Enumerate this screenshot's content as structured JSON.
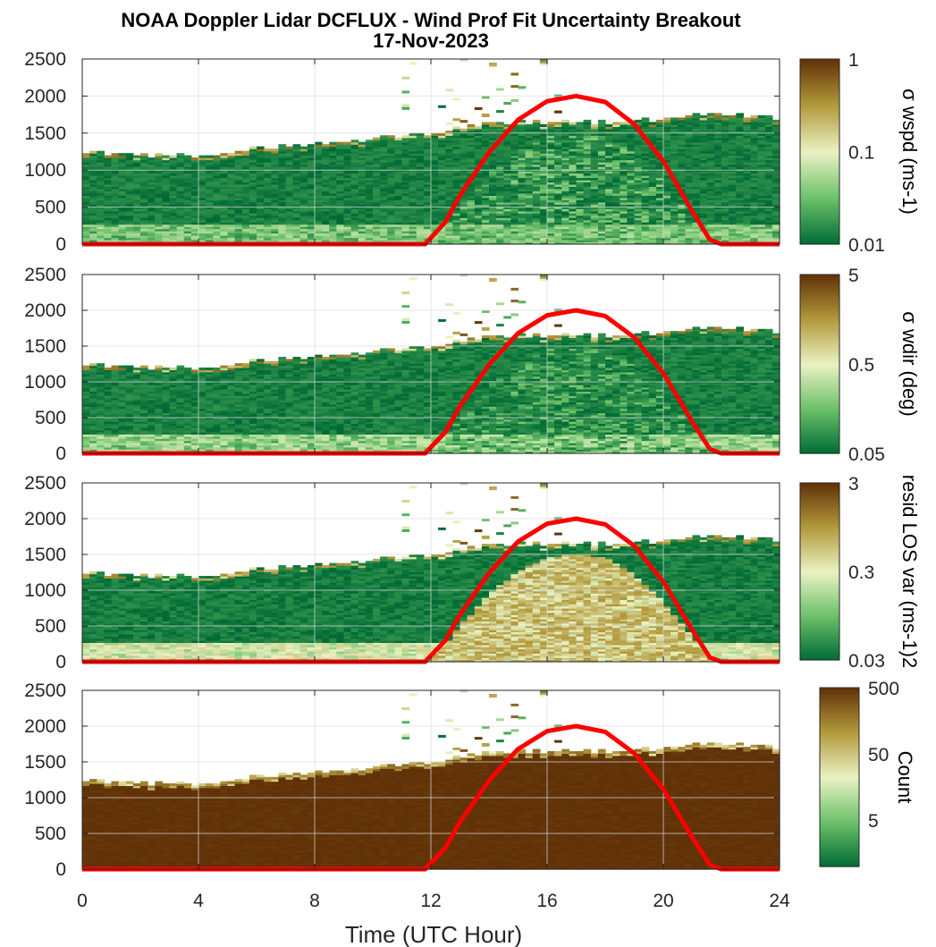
{
  "title": "NOAA Doppler Lidar DCFLUX - Wind Prof Fit Uncertainty Breakout",
  "subtitle": "17-Nov-2023",
  "xlabel": "Time (UTC Hour)",
  "colors": {
    "low": "#006b35",
    "mid_low": "#6cc06a",
    "mid": "#eaf2c4",
    "mid_high": "#b29a3c",
    "high": "#613208",
    "sun_line": "#ff0000",
    "grid": "#dcdcdc"
  },
  "chart_data": [
    {
      "type": "heatmap",
      "panel": "wind speed uncertainty",
      "x_range": [
        0,
        24
      ],
      "x_ticks": [
        "0",
        "4",
        "8",
        "12",
        "16",
        "20",
        "24"
      ],
      "y_range": [
        0,
        2500
      ],
      "y_ticks": [
        "0",
        "500",
        "1000",
        "1500",
        "2000",
        "2500"
      ],
      "colorbar": {
        "label": "σ wspd (ms-1)",
        "scale": "log",
        "range": [
          0.01,
          1
        ],
        "ticks": [
          "0.01",
          "0.1",
          "1"
        ]
      },
      "cloud_top_m": {
        "x": [
          0,
          2,
          4,
          6,
          8,
          10,
          12,
          14,
          16,
          18,
          20,
          22,
          24
        ],
        "y": [
          1250,
          1200,
          1170,
          1270,
          1320,
          1420,
          1480,
          1630,
          1640,
          1640,
          1680,
          1760,
          1700
        ]
      },
      "description_values": {
        "bulk": 0.012,
        "near_surface": 0.04,
        "daytime_mid": 0.03,
        "scattered_top": 0.4
      },
      "grid": true
    },
    {
      "type": "heatmap",
      "panel": "wind direction uncertainty",
      "x_range": [
        0,
        24
      ],
      "x_ticks": [
        "0",
        "4",
        "8",
        "12",
        "16",
        "20",
        "24"
      ],
      "y_range": [
        0,
        2500
      ],
      "y_ticks": [
        "0",
        "500",
        "1000",
        "1500",
        "2000",
        "2500"
      ],
      "colorbar": {
        "label": "σ wdir (deg)",
        "scale": "log",
        "range": [
          0.05,
          5
        ],
        "ticks": [
          "0.05",
          "0.5",
          "5"
        ]
      },
      "cloud_top_m": {
        "x": [
          0,
          2,
          4,
          6,
          8,
          10,
          12,
          14,
          16,
          18,
          20,
          22,
          24
        ],
        "y": [
          1250,
          1200,
          1170,
          1270,
          1320,
          1420,
          1480,
          1630,
          1640,
          1640,
          1680,
          1760,
          1700
        ]
      },
      "description_values": {
        "bulk": 0.06,
        "near_surface": 0.25,
        "daytime_mid": 0.12,
        "scattered_top": 2.0
      },
      "grid": true
    },
    {
      "type": "heatmap",
      "panel": "residual LOS variance",
      "x_range": [
        0,
        24
      ],
      "x_ticks": [
        "0",
        "4",
        "8",
        "12",
        "16",
        "20",
        "24"
      ],
      "y_range": [
        0,
        2500
      ],
      "y_ticks": [
        "0",
        "500",
        "1000",
        "1500",
        "2000",
        "2500"
      ],
      "colorbar": {
        "label": "resid LOS var (ms-1)2",
        "scale": "log",
        "range": [
          0.03,
          3
        ],
        "ticks": [
          "0.03",
          "0.3",
          "3"
        ]
      },
      "cloud_top_m": {
        "x": [
          0,
          2,
          4,
          6,
          8,
          10,
          12,
          14,
          16,
          18,
          20,
          22,
          24
        ],
        "y": [
          1250,
          1200,
          1170,
          1270,
          1320,
          1420,
          1480,
          1630,
          1640,
          1640,
          1680,
          1760,
          1700
        ]
      },
      "description_values": {
        "bulk": 0.035,
        "near_surface": 0.3,
        "daytime_mid": 0.5,
        "scattered_top": 1.0
      },
      "grid": true
    },
    {
      "type": "heatmap",
      "panel": "count",
      "x_range": [
        0,
        24
      ],
      "x_ticks": [
        "0",
        "4",
        "8",
        "12",
        "16",
        "20",
        "24"
      ],
      "y_range": [
        0,
        2500
      ],
      "y_ticks": [
        "0",
        "500",
        "1000",
        "1500",
        "2000",
        "2500"
      ],
      "colorbar": {
        "label": "Count",
        "scale": "log",
        "range": [
          1,
          500
        ],
        "ticks": [
          "5",
          "50",
          "500"
        ]
      },
      "cloud_top_m": {
        "x": [
          0,
          2,
          4,
          6,
          8,
          10,
          12,
          14,
          16,
          18,
          20,
          22,
          24
        ],
        "y": [
          1250,
          1200,
          1170,
          1270,
          1320,
          1420,
          1480,
          1630,
          1640,
          1640,
          1680,
          1760,
          1700
        ]
      },
      "description_values": {
        "bulk": 500,
        "scattered_top": 20
      },
      "grid": true
    },
    {
      "type": "line",
      "panel": "solar elevation overlay (all panels)",
      "x": [
        0,
        11.8,
        12.5,
        13,
        14,
        15,
        16,
        17,
        18,
        19,
        20,
        21,
        21.6,
        22,
        24
      ],
      "y": [
        0,
        0,
        300,
        660,
        1240,
        1680,
        1930,
        2000,
        1920,
        1620,
        1120,
        440,
        60,
        0,
        0
      ]
    }
  ]
}
